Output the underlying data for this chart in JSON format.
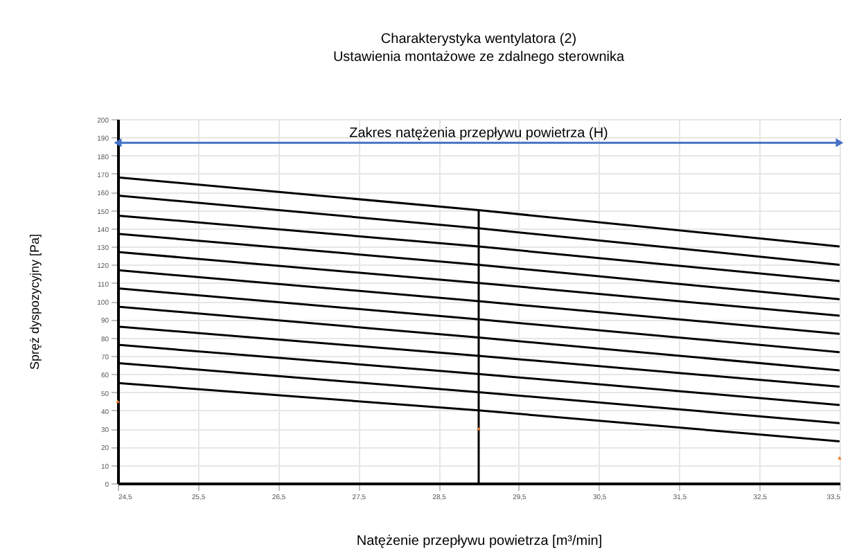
{
  "chart_data": {
    "type": "line",
    "title": "Charakterystyka wentylatora (2)",
    "subtitle": "Ustawienia montażowe ze zdalnego sterownika",
    "xlabel": "Natężenie przepływu powietrza [m³/min]",
    "ylabel": "Spręż dyspozycyjny [Pa]",
    "xlim": [
      24.5,
      33.5
    ],
    "ylim": [
      0,
      200
    ],
    "xticks": [
      {
        "value": 24.5,
        "label": "24,5"
      },
      {
        "value": 25.5,
        "label": "25,5"
      },
      {
        "value": 26.5,
        "label": "26,5"
      },
      {
        "value": 27.5,
        "label": "27,5"
      },
      {
        "value": 28.5,
        "label": "28,5"
      },
      {
        "value": 29.5,
        "label": "29,5"
      },
      {
        "value": 30.5,
        "label": "30,5"
      },
      {
        "value": 31.5,
        "label": "31,5"
      },
      {
        "value": 32.5,
        "label": "32,5"
      },
      {
        "value": 33.5,
        "label": "33,5"
      }
    ],
    "yticks": [
      0,
      10,
      20,
      30,
      40,
      50,
      60,
      70,
      80,
      90,
      100,
      110,
      120,
      130,
      140,
      150,
      160,
      170,
      180,
      190,
      200
    ],
    "grid": true,
    "marker": "none",
    "line_style": "solid",
    "series": [
      {
        "color": "#000000",
        "x": [
          24.5,
          29,
          33.5
        ],
        "values": [
          168,
          150,
          130
        ]
      },
      {
        "color": "#000000",
        "x": [
          24.5,
          29,
          33.5
        ],
        "values": [
          158,
          140,
          120
        ]
      },
      {
        "color": "#000000",
        "x": [
          24.5,
          29,
          33.5
        ],
        "values": [
          147,
          130,
          111
        ]
      },
      {
        "color": "#000000",
        "x": [
          24.5,
          29,
          33.5
        ],
        "values": [
          137,
          120,
          101
        ]
      },
      {
        "color": "#000000",
        "x": [
          24.5,
          29,
          33.5
        ],
        "values": [
          127,
          110,
          92
        ]
      },
      {
        "color": "#000000",
        "x": [
          24.5,
          29,
          33.5
        ],
        "values": [
          117,
          100,
          82
        ]
      },
      {
        "color": "#000000",
        "x": [
          24.5,
          29,
          33.5
        ],
        "values": [
          107,
          90,
          72
        ]
      },
      {
        "color": "#000000",
        "x": [
          24.5,
          29,
          33.5
        ],
        "values": [
          97,
          80,
          62
        ]
      },
      {
        "color": "#000000",
        "x": [
          24.5,
          29,
          33.5
        ],
        "values": [
          86,
          70,
          53
        ]
      },
      {
        "color": "#000000",
        "x": [
          24.5,
          29,
          33.5
        ],
        "values": [
          76,
          60,
          43
        ]
      },
      {
        "color": "#000000",
        "x": [
          24.5,
          29,
          33.5
        ],
        "values": [
          66,
          50,
          33
        ]
      },
      {
        "color": "#000000",
        "x": [
          24.5,
          29,
          33.5
        ],
        "values": [
          55,
          40,
          23
        ]
      },
      {
        "color": "#000000",
        "x": [
          29,
          29
        ],
        "values": [
          0,
          150
        ]
      },
      {
        "type": "scatter",
        "marker": "triangle",
        "color": "#ed7d31",
        "x": [
          24.5,
          29,
          33.5
        ],
        "values": [
          45,
          30,
          14
        ]
      },
      {
        "name": "Zakres natężenia przepływu powietrza (H)",
        "marker": "triangle",
        "color": "#4472c4",
        "x": [
          24.5,
          33.5
        ],
        "values": [
          187,
          187
        ]
      }
    ]
  }
}
